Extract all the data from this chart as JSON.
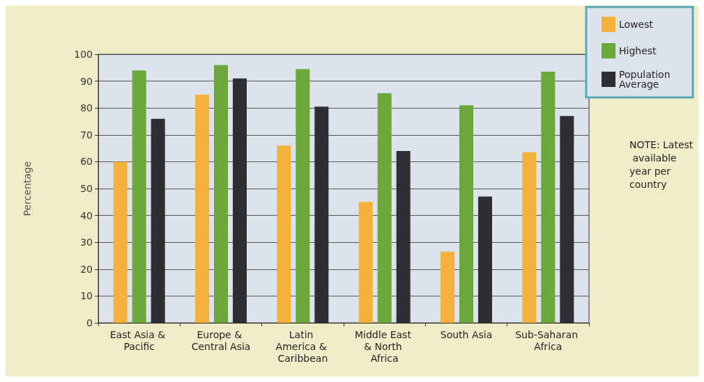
{
  "chart_data": {
    "type": "bar",
    "ylabel": "Percentage",
    "categories": [
      "East Asia & Pacific",
      "Europe & Central Asia",
      "Latin America & Caribbean",
      "Middle East & North Africa",
      "South Asia",
      "Sub-Saharan Africa"
    ],
    "series": [
      {
        "name": "Lowest",
        "color": "#f2b13a",
        "values": [
          60,
          85,
          66,
          45,
          26.5,
          63.5
        ]
      },
      {
        "name": "Highest",
        "color": "#6aa83c",
        "values": [
          94,
          96,
          94.5,
          85.5,
          81,
          93.5
        ]
      },
      {
        "name": "Population Average",
        "color": "#2e2f35",
        "values": [
          76,
          91,
          80.5,
          64,
          47,
          77
        ]
      }
    ],
    "ylim": [
      0,
      100
    ],
    "yticks": [
      0,
      10,
      20,
      30,
      40,
      50,
      60,
      70,
      80,
      90,
      100
    ],
    "grid": "y",
    "legend": "top right",
    "annotations": [
      "NOTE: Latest available year per country"
    ]
  }
}
